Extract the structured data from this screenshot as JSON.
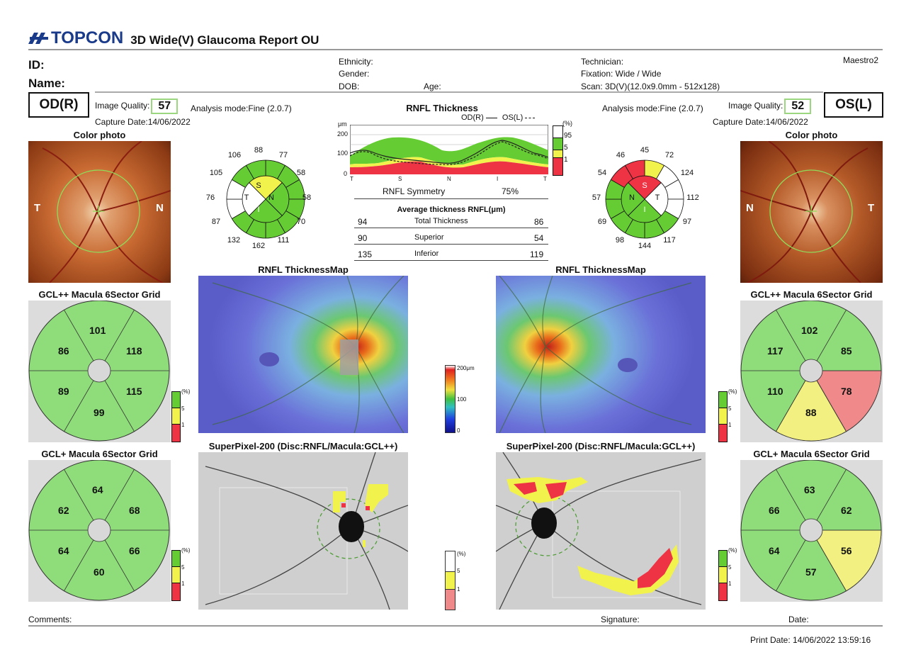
{
  "header": {
    "brand": "TOPCON",
    "report_title": "3D Wide(V) Glaucoma Report OU",
    "id_label": "ID:",
    "name_label": "Name:",
    "ethnicity_label": "Ethnicity:",
    "gender_label": "Gender:",
    "dob_label": "DOB:",
    "age_label": "Age:",
    "technician_label": "Technician:",
    "fixation": "Fixation: Wide / Wide",
    "scan": "Scan: 3D(V)(12.0x9.0mm - 512x128)",
    "maestro": "Maestro2"
  },
  "od": {
    "eye_label": "OD(R)",
    "image_quality_label": "Image Quality:",
    "image_quality": "57",
    "analysis_mode": "Analysis mode:Fine (2.0.7)",
    "capture_date": "Capture Date:14/06/2022",
    "color_photo_title": "Color photo",
    "photo_left": "T",
    "photo_right": "N",
    "sector_center": {
      "top": "S",
      "left": "T",
      "right": "N",
      "bottom": "I"
    },
    "clock_values": [
      "88",
      "77",
      "58",
      "58",
      "70",
      "111",
      "162",
      "132",
      "87",
      "76",
      "105",
      "106"
    ],
    "gcl_pp_title": "GCL++ Macula 6Sector Grid",
    "gcl_pp_values": [
      "101",
      "118",
      "115",
      "99",
      "89",
      "86"
    ],
    "gcl_p_title": "GCL+ Macula 6Sector Grid",
    "gcl_p_values": [
      "64",
      "68",
      "66",
      "60",
      "64",
      "62"
    ],
    "map_title": "RNFL ThicknessMap",
    "superpixel_title": "SuperPixel-200 (Disc:RNFL/Macula:GCL++)"
  },
  "os": {
    "eye_label": "OS(L)",
    "image_quality_label": "Image Quality:",
    "image_quality": "52",
    "analysis_mode": "Analysis mode:Fine (2.0.7)",
    "capture_date": "Capture Date:14/06/2022",
    "color_photo_title": "Color photo",
    "photo_left": "N",
    "photo_right": "T",
    "sector_center": {
      "top": "S",
      "left": "N",
      "right": "T",
      "bottom": "I"
    },
    "clock_values": [
      "45",
      "72",
      "124",
      "112",
      "97",
      "117",
      "144",
      "98",
      "69",
      "57",
      "54",
      "46"
    ],
    "gcl_pp_title": "GCL++ Macula 6Sector Grid",
    "gcl_pp_values": [
      "102",
      "85",
      "78",
      "88",
      "110",
      "117"
    ],
    "gcl_p_title": "GCL+ Macula 6Sector Grid",
    "gcl_p_values": [
      "63",
      "62",
      "56",
      "57",
      "64",
      "66"
    ],
    "map_title": "RNFL ThicknessMap",
    "superpixel_title": "SuperPixel-200 (Disc:RNFL/Macula:GCL++)"
  },
  "rnfl": {
    "title": "RNFL Thickness",
    "unit": "μm",
    "od_legend": "OD(R)",
    "os_legend": "OS(L)",
    "y_ticks": [
      "200",
      "100",
      "0"
    ],
    "x_ticks": [
      "T",
      "S",
      "N",
      "I",
      "T"
    ],
    "pct_label": "(%)",
    "pct_ticks": [
      "95",
      "5",
      "1"
    ],
    "symmetry_label": "RNFL Symmetry",
    "symmetry_value": "75%",
    "avg_title": "Average thickness RNFL(μm)",
    "rows": [
      {
        "od": "94",
        "label": "Total Thickness",
        "os": "86"
      },
      {
        "od": "90",
        "label": "Superior",
        "os": "54"
      },
      {
        "od": "135",
        "label": "Inferior",
        "os": "119"
      }
    ]
  },
  "colorscale": {
    "top": "200μm",
    "mid": "100",
    "bottom": "0"
  },
  "sp_legend": {
    "label": "(%)",
    "v5": "5",
    "v1": "1"
  },
  "grid_legend": {
    "label": "(%)",
    "v5": "5",
    "v1": "1"
  },
  "footer": {
    "comments": "Comments:",
    "signature": "Signature:",
    "date": "Date:",
    "print_date": "Print Date: 14/06/2022 13:59:16"
  },
  "colors": {
    "normal": "#66cc33",
    "borderline": "#f2f24d",
    "abnormal": "#ee3344",
    "gray_line": "#999999"
  }
}
